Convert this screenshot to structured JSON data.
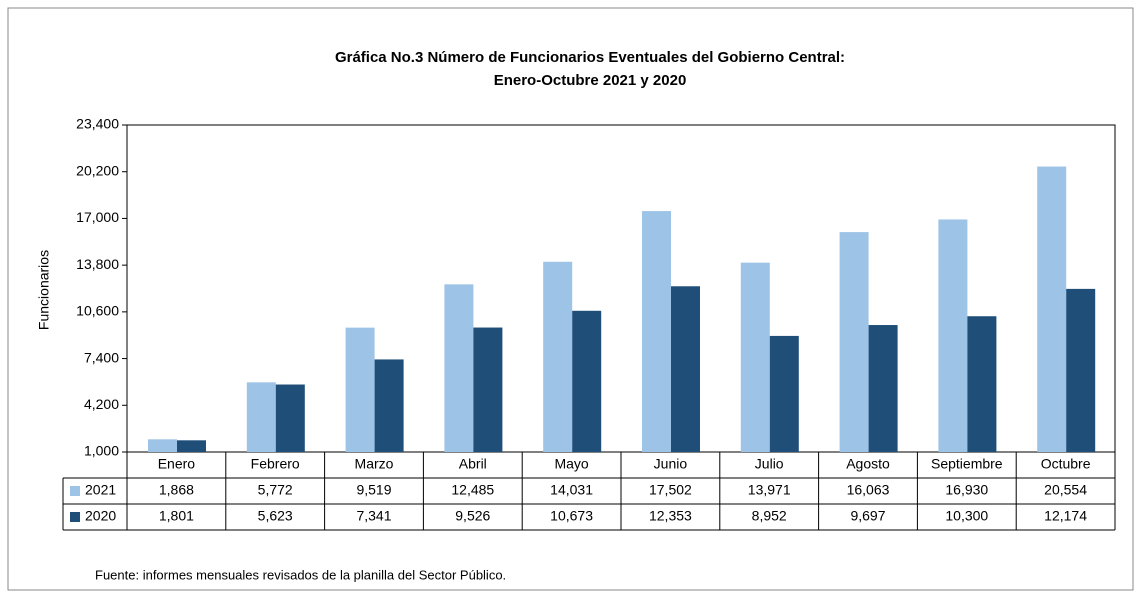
{
  "chart_data": {
    "type": "bar",
    "title": [
      "Gráfica No.3 Número de Funcionarios Eventuales del Gobierno Central:",
      "Enero-Octubre 2021 y 2020"
    ],
    "y_label": "Funcionarios",
    "categories": [
      "Enero",
      "Febrero",
      "Marzo",
      "Abril",
      "Mayo",
      "Junio",
      "Julio",
      "Agosto",
      "Septiembre",
      "Octubre"
    ],
    "series": [
      {
        "name": "2021",
        "color": "#9dc3e6",
        "values": [
          1868,
          5772,
          9519,
          12485,
          14031,
          17502,
          13971,
          16063,
          16930,
          20554
        ],
        "value_labels": [
          "1,868",
          "5,772",
          "9,519",
          "12,485",
          "14,031",
          "17,502",
          "13,971",
          "16,063",
          "16,930",
          "20,554"
        ]
      },
      {
        "name": "2020",
        "color": "#1f4e79",
        "values": [
          1801,
          5623,
          7341,
          9526,
          10673,
          12353,
          8952,
          9697,
          10300,
          12174
        ],
        "value_labels": [
          "1,801",
          "5,623",
          "7,341",
          "9,526",
          "10,673",
          "12,353",
          "8,952",
          "9,697",
          "10,300",
          "12,174"
        ]
      }
    ],
    "ylim": [
      1000,
      23400
    ],
    "yticks": [
      {
        "value": 1000,
        "label": "1,000"
      },
      {
        "value": 4200,
        "label": "4,200"
      },
      {
        "value": 7400,
        "label": "7,400"
      },
      {
        "value": 10600,
        "label": "10,600"
      },
      {
        "value": 13800,
        "label": "13,800"
      },
      {
        "value": 17000,
        "label": "17,000"
      },
      {
        "value": 20200,
        "label": "20,200"
      },
      {
        "value": 23400,
        "label": "23,400"
      }
    ],
    "source": "Fuente: informes mensuales revisados de la planilla del Sector Público."
  }
}
